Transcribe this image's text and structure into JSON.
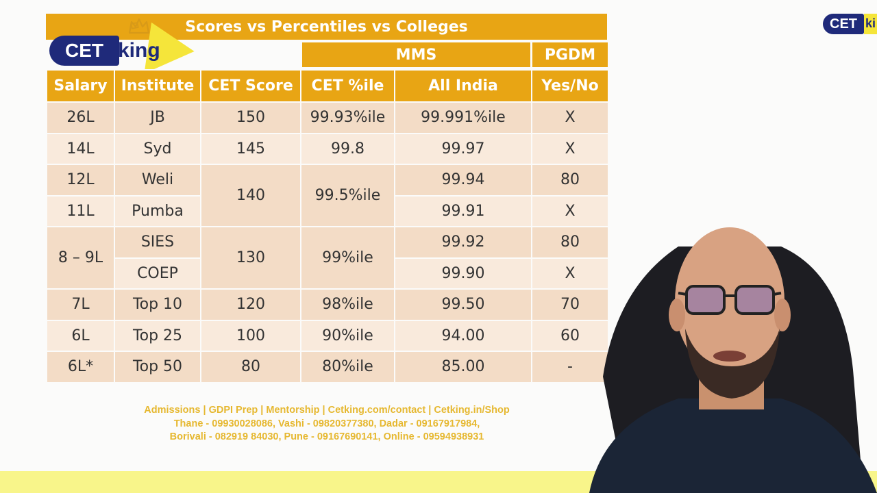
{
  "slide": {
    "title": "Scores vs Percentiles vs Colleges",
    "logo": {
      "cet": "CET",
      "king": "king"
    },
    "corner_logo": {
      "cet": "CET",
      "king": "ki"
    },
    "group_headers": {
      "mms": "MMS",
      "pgdm": "PGDM"
    },
    "columns": [
      "Salary",
      "Institute",
      "CET Score",
      "CET %ile",
      "All India",
      "Yes/No"
    ],
    "rows": [
      {
        "salary": "26L",
        "institute": "JB",
        "cet_score": "150",
        "cet_pct": "99.93%ile",
        "all_india": "99.991%ile",
        "pgdm": "X"
      },
      {
        "salary": "14L",
        "institute": "Syd",
        "cet_score": "145",
        "cet_pct": "99.8",
        "all_india": "99.97",
        "pgdm": "X"
      },
      {
        "salary": "12L",
        "institute": "Weli",
        "cet_score": "140",
        "cet_pct": "99.5%ile",
        "all_india": "99.94",
        "pgdm": "80"
      },
      {
        "salary": "11L",
        "institute": "Pumba",
        "all_india": "99.91",
        "pgdm": "X"
      },
      {
        "salary": "8 – 9L",
        "institute": "SIES",
        "cet_score": "130",
        "cet_pct": "99%ile",
        "all_india": "99.92",
        "pgdm": "80"
      },
      {
        "institute": "COEP",
        "all_india": "99.90",
        "pgdm": "X"
      },
      {
        "salary": "7L",
        "institute": "Top 10",
        "cet_score": "120",
        "cet_pct": "98%ile",
        "all_india": "99.50",
        "pgdm": "70"
      },
      {
        "salary": "6L",
        "institute": "Top 25",
        "cet_score": "100",
        "cet_pct": "90%ile",
        "all_india": "94.00",
        "pgdm": "60"
      },
      {
        "salary": "6L*",
        "institute": "Top 50",
        "cet_score": "80",
        "cet_pct": "80%ile",
        "all_india": "85.00",
        "pgdm": "-"
      }
    ],
    "footer": {
      "line1": "Admissions | GDPI Prep | Mentorship | Cetking.com/contact | Cetking.in/Shop",
      "line2": "Thane - 09930028086, Vashi - 09820377380, Dadar - 09167917984,",
      "line3": "Borivali - 082919 84030, Pune - 09167690141, Online - 09594938931"
    },
    "colors": {
      "accent": "#e8a514",
      "row_dark": "#f3dcc6",
      "row_light": "#f9eadc",
      "logo_navy": "#1f2a7a",
      "logo_yellow": "#f5e53a",
      "footer_text": "#e6b830"
    }
  }
}
